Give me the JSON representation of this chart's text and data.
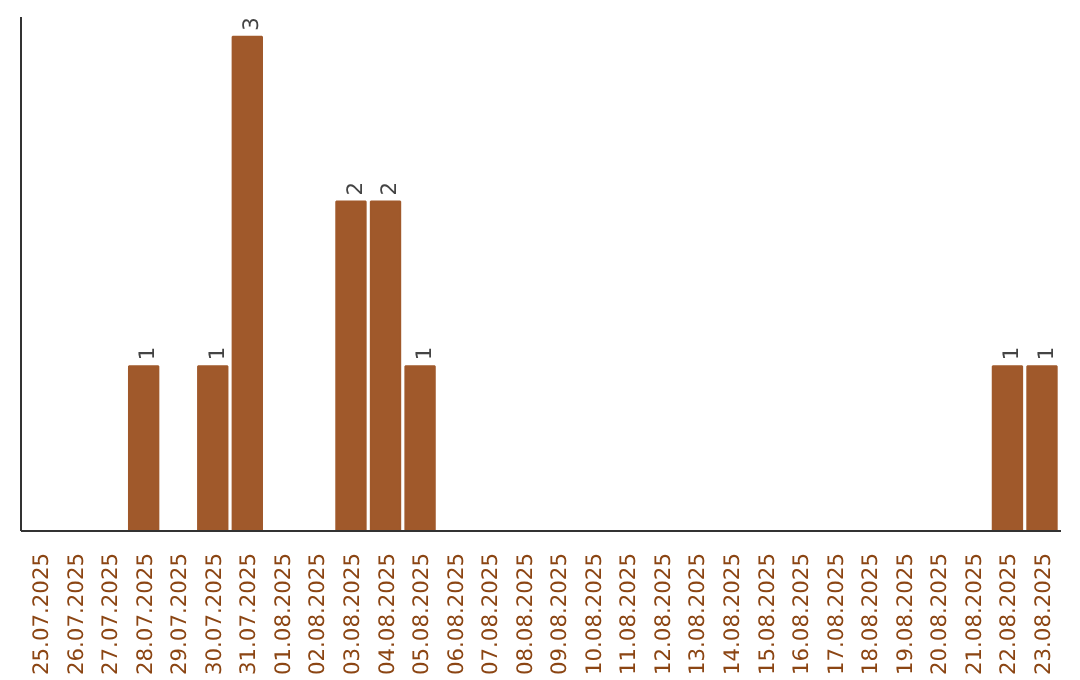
{
  "chart_data": {
    "type": "bar",
    "categories": [
      "25.07.2025",
      "26.07.2025",
      "27.07.2025",
      "28.07.2025",
      "29.07.2025",
      "30.07.2025",
      "31.07.2025",
      "01.08.2025",
      "02.08.2025",
      "03.08.2025",
      "04.08.2025",
      "05.08.2025",
      "06.08.2025",
      "07.08.2025",
      "08.08.2025",
      "09.08.2025",
      "10.08.2025",
      "11.08.2025",
      "12.08.2025",
      "13.08.2025",
      "14.08.2025",
      "15.08.2025",
      "16.08.2025",
      "17.08.2025",
      "18.08.2025",
      "19.08.2025",
      "20.08.2025",
      "21.08.2025",
      "22.08.2025",
      "23.08.2025"
    ],
    "values": [
      0,
      0,
      0,
      1,
      0,
      1,
      3,
      0,
      0,
      2,
      2,
      1,
      0,
      0,
      0,
      0,
      0,
      0,
      0,
      0,
      0,
      0,
      0,
      0,
      0,
      0,
      0,
      0,
      1,
      1
    ],
    "value_labels": [
      null,
      null,
      null,
      "1",
      null,
      "1",
      "3",
      null,
      null,
      "2",
      "2",
      "1",
      null,
      null,
      null,
      null,
      null,
      null,
      null,
      null,
      null,
      null,
      null,
      null,
      null,
      null,
      null,
      null,
      "1",
      "1"
    ],
    "color": "#a0592b",
    "grid": false
  }
}
